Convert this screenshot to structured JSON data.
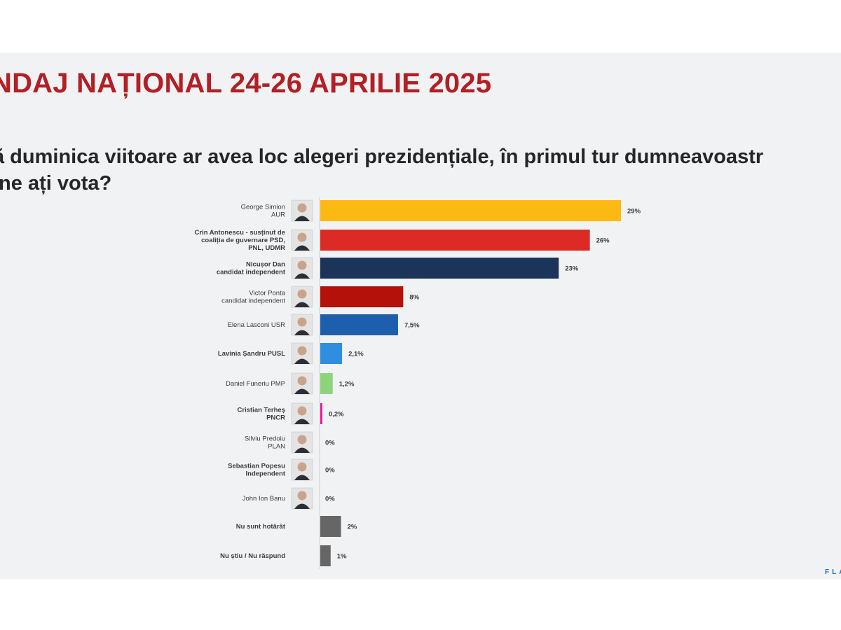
{
  "header": {
    "title": "NDAJ NAȚIONAL 24-26 APRILIE 2025",
    "question_lines": [
      "ă duminica viitoare ar avea loc alegeri prezidențiale, în primul tur dumneavoastr",
      "ine ați vota?"
    ]
  },
  "footer": {
    "logo_text": "FLA"
  },
  "colors": {
    "title": "#b21f24",
    "background": "#f1f2f4",
    "aur": "#fdb913",
    "psd_coalition": "#dc2b25",
    "dan": "#1b3459",
    "ponta": "#b3110a",
    "usr": "#1d5fac",
    "pusl": "#2f8fde",
    "pmp": "#8ed47c",
    "pncr": "#e8199a",
    "undecided": "#666666"
  },
  "chart_data": {
    "type": "bar",
    "orientation": "horizontal",
    "categories": [
      [
        "George Simion",
        "AUR"
      ],
      [
        "Crin Antonescu - susținut de",
        "coaliția de guvernare PSD,",
        "PNL, UDMR"
      ],
      [
        "Nicușor Dan",
        "candidat independent"
      ],
      [
        "Victor Ponta",
        "candidat independent"
      ],
      [
        "Elena Lasconi USR"
      ],
      [
        "Lavinia Șandru PUSL"
      ],
      [
        "Daniel Funeriu PMP"
      ],
      [
        "Cristian Terheș",
        "PNCR"
      ],
      [
        "Silviu Predoiu",
        "PLAN"
      ],
      [
        "Sebastian Popesu",
        "Independent"
      ],
      [
        "John Ion Banu"
      ],
      [
        "Nu sunt hotărât"
      ],
      [
        "Nu știu / Nu răspund"
      ]
    ],
    "bold_labels": [
      false,
      true,
      true,
      false,
      false,
      true,
      false,
      true,
      false,
      true,
      false,
      true,
      true
    ],
    "values": [
      29,
      26,
      23,
      8,
      7.5,
      2.1,
      1.2,
      0.2,
      0,
      0,
      0,
      2,
      1
    ],
    "value_labels": [
      "29%",
      "26%",
      "23%",
      "8%",
      "7,5%",
      "2,1%",
      "1,2%",
      "0,2%",
      "0%",
      "0%",
      "0%",
      "2%",
      "1%"
    ],
    "colors": [
      "#fdb913",
      "#dc2b25",
      "#1b3459",
      "#b3110a",
      "#1d5fac",
      "#2f8fde",
      "#8ed47c",
      "#e8199a",
      "#999999",
      "#999999",
      "#999999",
      "#666666",
      "#666666"
    ],
    "has_photo": [
      true,
      true,
      true,
      true,
      true,
      true,
      true,
      true,
      true,
      true,
      true,
      false,
      false
    ],
    "xlim": [
      0,
      29
    ],
    "grid": false,
    "legend": "none"
  }
}
